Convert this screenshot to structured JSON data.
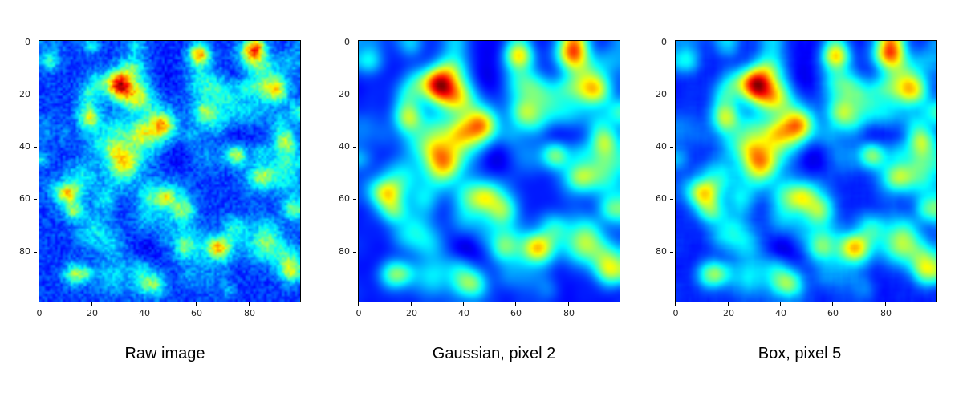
{
  "panels": [
    {
      "caption": "Raw image",
      "smoothing": "none"
    },
    {
      "caption": "Gaussian, pixel 2",
      "smoothing": "gaussian"
    },
    {
      "caption": "Box, pixel 5",
      "smoothing": "box"
    }
  ],
  "axes": {
    "y_ticks": [
      "0",
      "20",
      "40",
      "60",
      "80"
    ],
    "x_ticks": [
      "0",
      "20",
      "40",
      "60",
      "80"
    ]
  },
  "colormap": "jet"
}
